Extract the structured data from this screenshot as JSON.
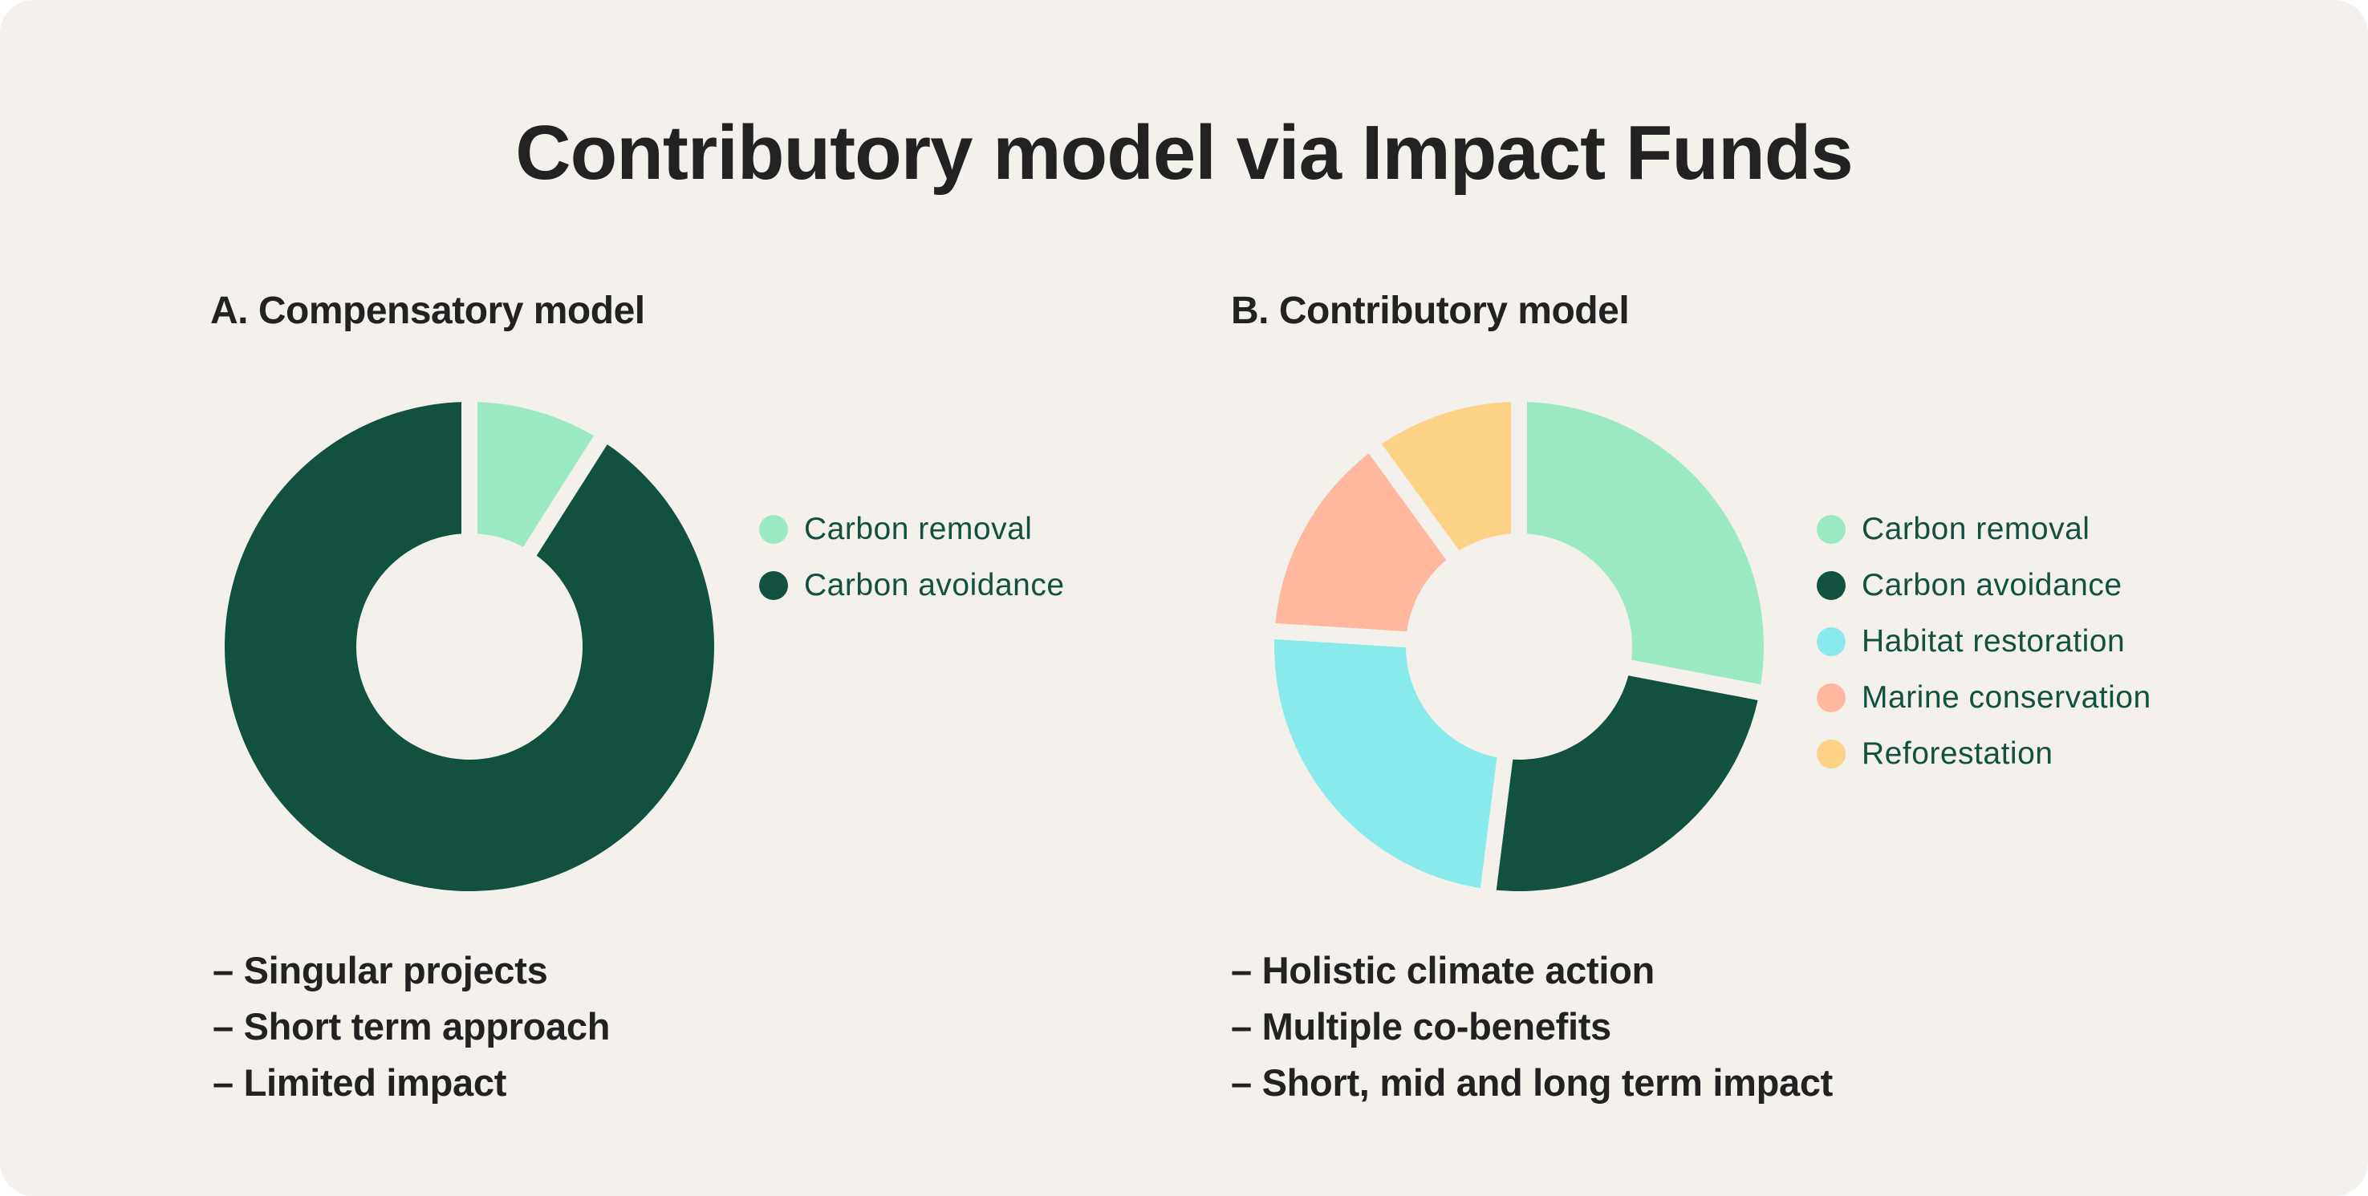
{
  "title": "Contributory model via Impact Funds",
  "colors": {
    "background": "#F4F1EC",
    "text": "#222222",
    "legend_text": "#12513F",
    "carbon_removal": "#9AE9C2",
    "carbon_avoidance": "#12513F",
    "habitat_restoration": "#88EAEA",
    "marine_conservation": "#FFB89E",
    "reforestation": "#FDD287"
  },
  "panels": [
    {
      "heading": "A. Compensatory model",
      "legend": [
        {
          "label": "Carbon removal",
          "color": "#9AE9C2"
        },
        {
          "label": "Carbon avoidance",
          "color": "#12513F"
        }
      ],
      "bullets": [
        "– Singular projects",
        "– Short term approach",
        "– Limited impact"
      ]
    },
    {
      "heading": "B. Contributory model",
      "legend": [
        {
          "label": "Carbon removal",
          "color": "#9AE9C2"
        },
        {
          "label": "Carbon avoidance",
          "color": "#12513F"
        },
        {
          "label": "Habitat restoration",
          "color": "#88EAEA"
        },
        {
          "label": "Marine conservation",
          "color": "#FFB89E"
        },
        {
          "label": "Reforestation",
          "color": "#FDD287"
        }
      ],
      "bullets": [
        "– Holistic climate action",
        "– Multiple co-benefits",
        "– Short, mid and long term impact"
      ]
    }
  ],
  "chart_data": [
    {
      "type": "pie",
      "subtype": "donut",
      "title": "A. Compensatory model",
      "categories": [
        "Carbon removal",
        "Carbon avoidance"
      ],
      "values": [
        9,
        91
      ],
      "colors": [
        "#9AE9C2",
        "#12513F"
      ],
      "legend_position": "right",
      "start_angle": "12 o'clock, clockwise"
    },
    {
      "type": "pie",
      "subtype": "donut",
      "title": "B. Contributory model",
      "categories": [
        "Carbon removal",
        "Carbon avoidance",
        "Habitat restoration",
        "Marine conservation",
        "Reforestation"
      ],
      "values": [
        28,
        24,
        24,
        14,
        10
      ],
      "colors": [
        "#9AE9C2",
        "#12513F",
        "#88EAEA",
        "#FFB89E",
        "#FDD287"
      ],
      "legend_position": "right",
      "start_angle": "12 o'clock, clockwise"
    }
  ]
}
